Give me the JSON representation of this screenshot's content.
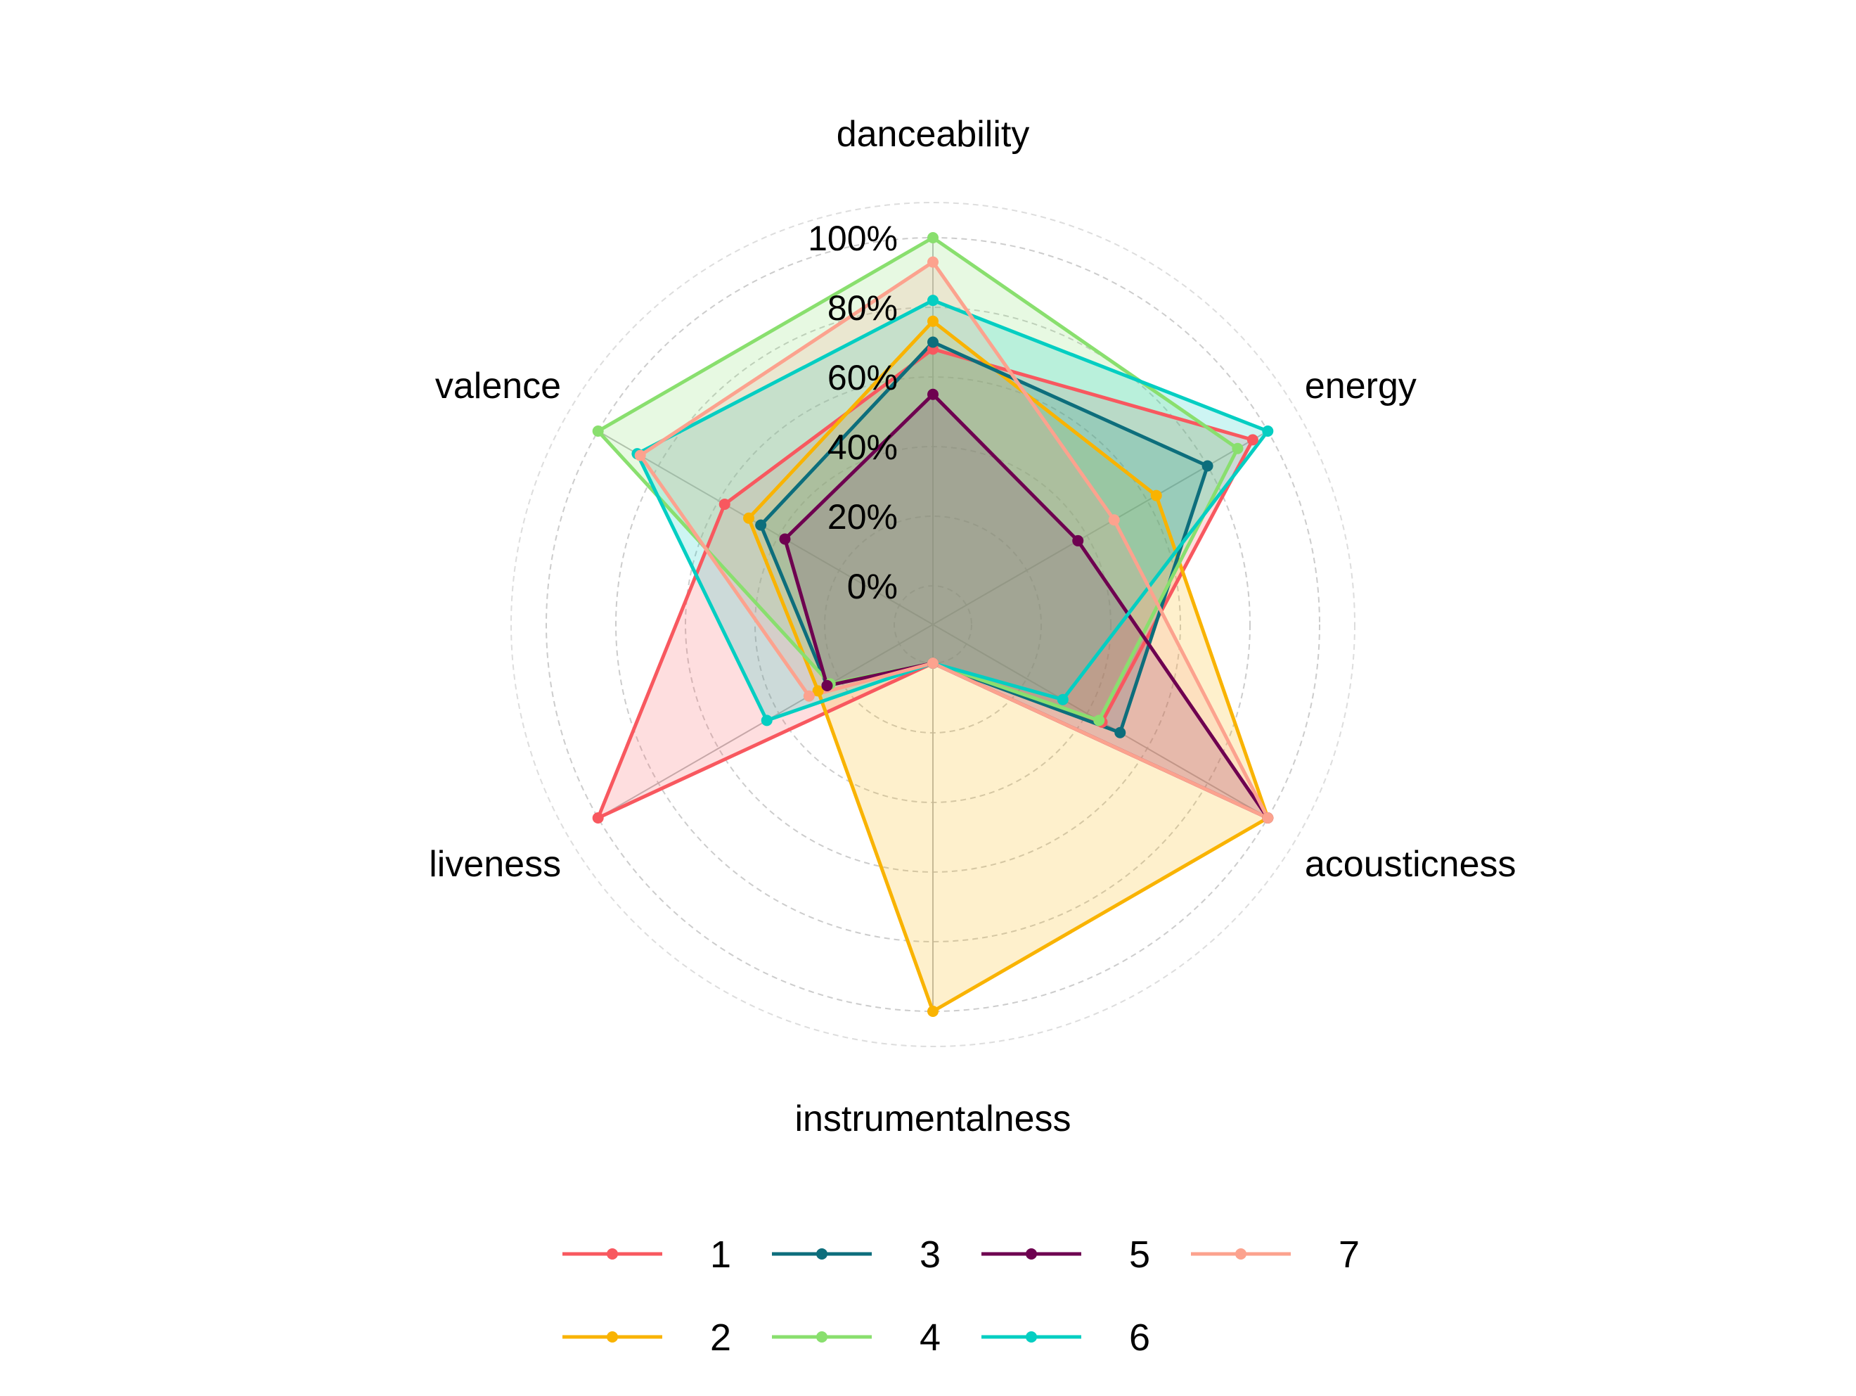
{
  "chart_data": {
    "type": "radar",
    "axes": [
      "danceability",
      "energy",
      "acousticness",
      "instrumentalness",
      "liveness",
      "valence"
    ],
    "radial_ticks": [
      "0%",
      "20%",
      "40%",
      "60%",
      "80%",
      "100%"
    ],
    "radial_range": [
      0,
      100
    ],
    "grid": true,
    "legend_position": "bottom",
    "series": [
      {
        "name": "1",
        "color": "#F8585F",
        "values": [
          68,
          95,
          45,
          0,
          100,
          58
        ]
      },
      {
        "name": "2",
        "color": "#F9B301",
        "values": [
          76,
          63,
          100,
          100,
          27,
          50
        ]
      },
      {
        "name": "3",
        "color": "#0D6E7C",
        "values": [
          70,
          80,
          51,
          0,
          24,
          46
        ]
      },
      {
        "name": "4",
        "color": "#89DF6E",
        "values": [
          100,
          90,
          44,
          0,
          23,
          100
        ]
      },
      {
        "name": "5",
        "color": "#6E0150",
        "values": [
          55,
          37,
          100,
          0,
          24,
          38
        ]
      },
      {
        "name": "6",
        "color": "#05CEC2",
        "values": [
          82,
          100,
          32,
          0,
          44,
          87
        ]
      },
      {
        "name": "7",
        "color": "#FCA28E",
        "values": [
          93,
          49,
          100,
          0,
          30,
          86
        ]
      }
    ]
  }
}
